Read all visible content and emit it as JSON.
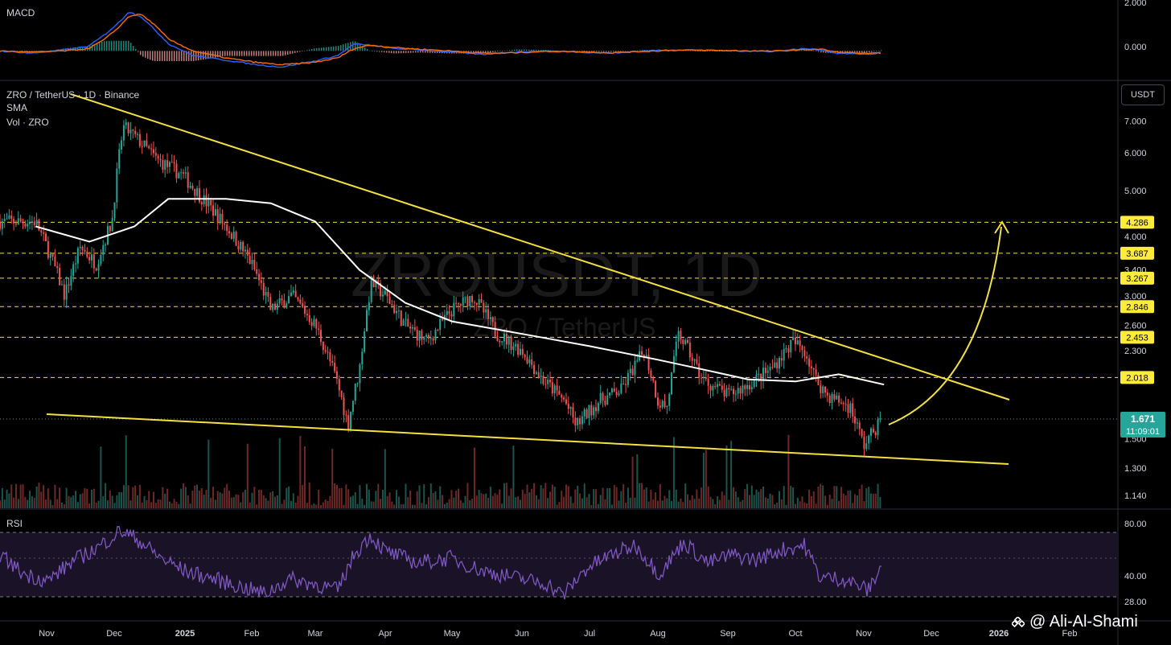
{
  "legend": {
    "pair": "ZRO / TetherUS · 1D · Binance",
    "sma": "SMA",
    "vol": "Vol · ZRO",
    "macd": "MACD",
    "rsi": "RSI"
  },
  "watermark": {
    "line1": "ZROUSDT, 1D",
    "line2": "ZRO / TetherUS"
  },
  "currency_button": "USDT",
  "last_price": {
    "value": "1.671",
    "countdown": "11:09:01"
  },
  "credit": "@ Ali-Al-Shami",
  "colors": {
    "up": "#26a69a",
    "down": "#ef5350",
    "sma": "#ffffff",
    "trend": "#f5e042",
    "level_line": "#f5e042",
    "level_badge_bg": "#ffeb3b",
    "level_badge_text": "#000000",
    "macd_line": "#2962ff",
    "signal_line": "#ff6d00",
    "rsi_line": "#7e57c2",
    "rsi_band": "#1e1530",
    "price_badge": "#26a69a"
  },
  "chart_data": [
    {
      "type": "line",
      "title": "MACD",
      "y_ticks": [
        "2.000",
        "0.000"
      ],
      "ylim": [
        -1.0,
        2.0
      ],
      "series": [
        {
          "values_x": [
            0,
            40,
            80,
            110,
            130,
            150,
            160,
            175,
            190,
            210,
            240,
            280,
            320,
            350,
            390,
            420,
            440,
            460,
            490,
            520,
            560,
            600,
            640,
            680,
            720,
            760,
            800,
            840,
            880,
            920,
            960,
            1000,
            1020,
            1040,
            1080,
            1100
          ],
          "values": [
            0.0,
            -0.1,
            0.05,
            0.2,
            0.7,
            1.3,
            1.7,
            1.5,
            1.0,
            0.3,
            -0.2,
            -0.4,
            -0.6,
            -0.7,
            -0.45,
            -0.2,
            0.3,
            0.25,
            0.1,
            0.05,
            -0.05,
            -0.15,
            -0.05,
            0.0,
            -0.05,
            -0.1,
            0.0,
            0.05,
            0.02,
            0.0,
            -0.02,
            0.1,
            0.05,
            -0.1,
            -0.15,
            -0.05
          ]
        },
        {
          "values_x": [
            0,
            40,
            80,
            110,
            130,
            150,
            160,
            175,
            190,
            210,
            240,
            280,
            320,
            350,
            390,
            420,
            440,
            460,
            490,
            520,
            560,
            600,
            640,
            680,
            720,
            760,
            800,
            840,
            880,
            920,
            960,
            1000,
            1020,
            1040,
            1080,
            1100
          ],
          "values": [
            0.0,
            -0.05,
            0.0,
            0.1,
            0.5,
            1.1,
            1.5,
            1.6,
            1.2,
            0.5,
            0.0,
            -0.3,
            -0.5,
            -0.6,
            -0.5,
            -0.3,
            0.1,
            0.25,
            0.15,
            0.08,
            0.0,
            -0.1,
            -0.08,
            -0.02,
            -0.03,
            -0.08,
            -0.02,
            0.03,
            0.03,
            0.01,
            -0.01,
            0.05,
            0.08,
            -0.05,
            -0.12,
            -0.08
          ]
        }
      ]
    },
    {
      "type": "line",
      "title": "ZRO / TetherUS · 1D · Binance",
      "y_scale": "log",
      "y_ticks": [
        "7.000",
        "6.000",
        "5.000",
        "4.000",
        "3.400",
        "3.000",
        "2.600",
        "2.300",
        "1.500",
        "1.300",
        "1.140"
      ],
      "ylim": [
        1.1,
        8.2
      ],
      "x_ticks": [
        "Nov",
        "Dec",
        "2025",
        "Feb",
        "Mar",
        "Apr",
        "May",
        "Jun",
        "Jul",
        "Aug",
        "Sep",
        "Oct",
        "Nov",
        "Dec",
        "2026",
        "Feb"
      ],
      "levels": [
        "4.286",
        "3.687",
        "3.267",
        "2.846",
        "2.453",
        "2.018"
      ],
      "price_path": {
        "x": [
          "Oct 26",
          "Nov 2",
          "Nov 9",
          "Nov 16",
          "Nov 23",
          "Nov 30",
          "Dec 5",
          "Dec 10",
          "Dec 20",
          "Dec 31",
          "Jan 10",
          "Jan 20",
          "Feb 1",
          "Feb 10",
          "Feb 20",
          "Mar 1",
          "Mar 10",
          "Mar 15",
          "Mar 20",
          "Mar 25",
          "Apr 1",
          "Apr 10",
          "Apr 20",
          "May 1",
          "May 10",
          "May 20",
          "Jun 1",
          "Jun 10",
          "Jun 20",
          "Jun 25",
          "Jul 5",
          "Jul 15",
          "Jul 25",
          "Aug 1",
          "Aug 5",
          "Aug 10",
          "Aug 20",
          "Aug 31",
          "Sep 10",
          "Sep 20",
          "Sep 30",
          "Oct 5",
          "Oct 10",
          "Oct 15",
          "Oct 25",
          "Nov 1",
          "Nov 5",
          "Nov 10"
        ],
        "close": [
          4.3,
          3.7,
          3.0,
          3.8,
          3.5,
          4.3,
          6.8,
          6.5,
          5.8,
          5.4,
          4.8,
          4.2,
          3.5,
          2.8,
          3.0,
          2.6,
          2.0,
          1.6,
          2.1,
          3.2,
          3.0,
          2.6,
          2.4,
          2.8,
          3.0,
          2.5,
          2.3,
          2.0,
          1.8,
          1.6,
          1.8,
          1.9,
          2.3,
          1.8,
          1.75,
          2.5,
          2.0,
          1.85,
          1.95,
          2.1,
          2.4,
          2.3,
          2.0,
          1.85,
          1.75,
          1.45,
          1.55,
          1.67
        ]
      },
      "sma_path": {
        "x": [
          "Oct 26",
          "Nov 20",
          "Dec 10",
          "Dec 25",
          "Jan 20",
          "Feb 10",
          "Mar 1",
          "Mar 20",
          "Apr 10",
          "May 1",
          "May 20",
          "Jun 10",
          "Jul 1",
          "Aug 1",
          "Aug 20",
          "Sep 10",
          "Oct 1",
          "Oct 20",
          "Nov 10"
        ],
        "values": [
          4.2,
          3.9,
          4.2,
          4.8,
          4.8,
          4.7,
          4.3,
          3.4,
          2.9,
          2.65,
          2.55,
          2.45,
          2.35,
          2.2,
          2.1,
          2.0,
          1.98,
          2.05,
          1.95
        ]
      },
      "last_price": 1.671
    },
    {
      "type": "line",
      "title": "RSI",
      "y_ticks": [
        "80.00",
        "40.00",
        "28.00"
      ],
      "ylim": [
        20,
        85
      ],
      "series": [
        {
          "values_x": [
            0,
            30,
            60,
            90,
            120,
            150,
            170,
            200,
            230,
            260,
            300,
            330,
            360,
            390,
            420,
            440,
            460,
            480,
            520,
            560,
            600,
            640,
            680,
            700,
            730,
            760,
            790,
            820,
            850,
            880,
            910,
            940,
            970,
            1000,
            1020,
            1050,
            1080,
            1100
          ],
          "values": [
            60,
            48,
            44,
            56,
            64,
            75,
            70,
            58,
            50,
            46,
            40,
            36,
            45,
            42,
            38,
            60,
            72,
            62,
            55,
            58,
            50,
            46,
            42,
            35,
            52,
            60,
            66,
            48,
            68,
            55,
            60,
            57,
            63,
            66,
            46,
            45,
            38,
            58
          ]
        }
      ]
    }
  ]
}
